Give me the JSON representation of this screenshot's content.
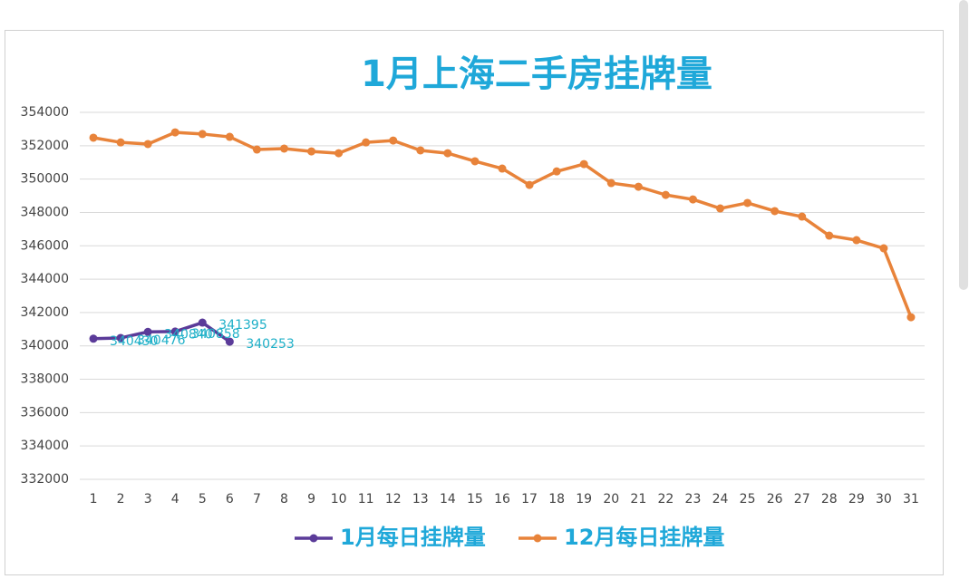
{
  "chart_data": {
    "type": "line",
    "title": "1月上海二手房挂牌量",
    "categories": [
      1,
      2,
      3,
      4,
      5,
      6,
      7,
      8,
      9,
      10,
      11,
      12,
      13,
      14,
      15,
      16,
      17,
      18,
      19,
      20,
      21,
      22,
      23,
      24,
      25,
      26,
      27,
      28,
      29,
      30,
      31
    ],
    "series": [
      {
        "name": "1月每日挂牌量",
        "color": "#5b3b99",
        "data_labels": true,
        "values": [
          340430,
          340476,
          340840,
          340858,
          341395,
          340253,
          null,
          null,
          null,
          null,
          null,
          null,
          null,
          null,
          null,
          null,
          null,
          null,
          null,
          null,
          null,
          null,
          null,
          null,
          null,
          null,
          null,
          null,
          null,
          null,
          null
        ]
      },
      {
        "name": "12月每日挂牌量",
        "color": "#e8833a",
        "data_labels": false,
        "values": [
          352480,
          352200,
          352100,
          352800,
          352700,
          352530,
          351770,
          351830,
          351660,
          351550,
          352200,
          352310,
          351720,
          351550,
          351070,
          350630,
          349650,
          350460,
          350900,
          349760,
          349540,
          349050,
          348780,
          348240,
          348570,
          348080,
          347750,
          346610,
          346340,
          345850,
          341720
        ]
      }
    ],
    "ylim": [
      332000,
      354000
    ],
    "yticks": [
      332000,
      334000,
      336000,
      338000,
      340000,
      342000,
      344000,
      346000,
      348000,
      350000,
      352000,
      354000
    ],
    "grid": true,
    "legend": "bottom"
  }
}
